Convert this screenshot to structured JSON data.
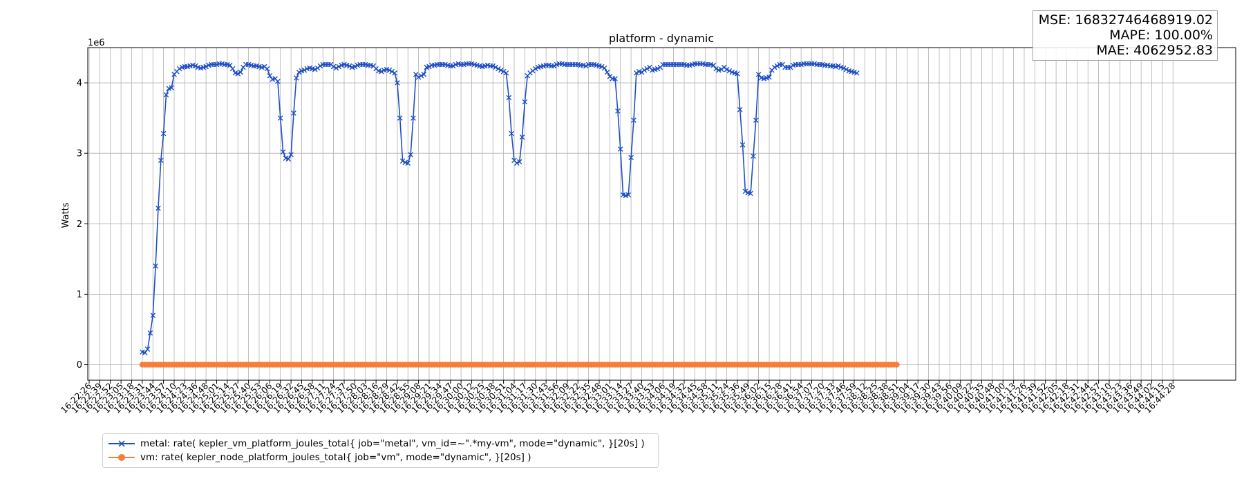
{
  "chart_data": {
    "type": "line",
    "title": "platform - dynamic",
    "xlabel": "",
    "ylabel": "Watts",
    "y_scale_label": "1e6",
    "y_multiplier": 1000000,
    "ylim": [
      -0.22,
      4.5
    ],
    "yticks": [
      0,
      1,
      2,
      3,
      4
    ],
    "grid": true,
    "legend_position": "bottom-left (below plot)",
    "x_tick_labels": [
      "16:22:26",
      "16:22:39",
      "16:22:52",
      "16:23:05",
      "16:23:18",
      "16:23:31",
      "16:23:44",
      "16:23:57",
      "16:24:10",
      "16:24:23",
      "16:24:36",
      "16:24:48",
      "16:25:01",
      "16:25:14",
      "16:25:27",
      "16:25:40",
      "16:25:53",
      "16:26:06",
      "16:26:19",
      "16:26:32",
      "16:26:45",
      "16:26:58",
      "16:27:11",
      "16:27:24",
      "16:27:37",
      "16:27:50",
      "16:28:03",
      "16:28:16",
      "16:28:29",
      "16:28:42",
      "16:28:55",
      "16:29:08",
      "16:29:21",
      "16:29:34",
      "16:29:47",
      "16:30:00",
      "16:30:12",
      "16:30:25",
      "16:30:38",
      "16:30:51",
      "16:31:04",
      "16:31:17",
      "16:31:30",
      "16:31:43",
      "16:31:56",
      "16:32:09",
      "16:32:22",
      "16:32:35",
      "16:32:48",
      "16:33:01",
      "16:33:14",
      "16:33:27",
      "16:33:40",
      "16:33:53",
      "16:34:06",
      "16:34:19",
      "16:34:32",
      "16:34:45",
      "16:34:58",
      "16:35:11",
      "16:35:24",
      "16:35:36",
      "16:35:49",
      "16:36:02",
      "16:36:15",
      "16:36:28",
      "16:36:41",
      "16:36:54",
      "16:37:07",
      "16:37:20",
      "16:37:33",
      "16:37:46",
      "16:37:59",
      "16:38:12",
      "16:38:25",
      "16:38:38",
      "16:38:51",
      "16:39:04",
      "16:39:17",
      "16:39:30",
      "16:39:43",
      "16:39:56",
      "16:40:09",
      "16:40:22",
      "16:40:35",
      "16:40:48",
      "16:41:00",
      "16:41:13",
      "16:41:26",
      "16:41:39",
      "16:41:52",
      "16:42:05",
      "16:42:18",
      "16:42:31",
      "16:42:44",
      "16:42:57",
      "16:43:10",
      "16:43:23",
      "16:43:36",
      "16:43:49",
      "16:44:02",
      "16:44:15",
      "16:44:28"
    ],
    "series": [
      {
        "name": "metal: rate( kepler_vm_platform_joules_total{ job=\"metal\", vm_id=~\".*my-vm\", mode=\"dynamic\", }[20s] )",
        "color": "#1f4fc4",
        "marker": "x",
        "start_tick": 5,
        "step": 0.25,
        "values": [
          0.18,
          0.17,
          0.22,
          0.45,
          0.7,
          1.4,
          2.22,
          2.9,
          3.28,
          3.83,
          3.92,
          3.93,
          4.12,
          4.16,
          4.2,
          4.22,
          4.23,
          4.23,
          4.24,
          4.25,
          4.24,
          4.22,
          4.21,
          4.22,
          4.23,
          4.25,
          4.26,
          4.26,
          4.26,
          4.27,
          4.27,
          4.26,
          4.26,
          4.25,
          4.2,
          4.14,
          4.13,
          4.15,
          4.22,
          4.26,
          4.26,
          4.25,
          4.24,
          4.24,
          4.23,
          4.22,
          4.23,
          4.2,
          4.1,
          4.05,
          4.06,
          4.02,
          3.5,
          3.02,
          2.93,
          2.92,
          2.98,
          3.57,
          4.07,
          4.15,
          4.17,
          4.18,
          4.2,
          4.21,
          4.2,
          4.19,
          4.21,
          4.24,
          4.26,
          4.26,
          4.26,
          4.26,
          4.23,
          4.21,
          4.23,
          4.25,
          4.26,
          4.25,
          4.24,
          4.22,
          4.23,
          4.25,
          4.26,
          4.26,
          4.26,
          4.25,
          4.25,
          4.24,
          4.2,
          4.17,
          4.16,
          4.18,
          4.19,
          4.18,
          4.16,
          4.14,
          4.0,
          3.5,
          2.89,
          2.87,
          2.86,
          2.98,
          3.5,
          4.12,
          4.08,
          4.1,
          4.12,
          4.22,
          4.23,
          4.25,
          4.25,
          4.26,
          4.26,
          4.26,
          4.26,
          4.25,
          4.24,
          4.24,
          4.26,
          4.27,
          4.26,
          4.26,
          4.27,
          4.27,
          4.27,
          4.26,
          4.25,
          4.24,
          4.23,
          4.24,
          4.25,
          4.24,
          4.24,
          4.22,
          4.2,
          4.18,
          4.16,
          4.14,
          3.79,
          3.28,
          2.9,
          2.86,
          2.88,
          3.23,
          3.73,
          4.1,
          4.14,
          4.17,
          4.2,
          4.22,
          4.23,
          4.24,
          4.25,
          4.25,
          4.24,
          4.24,
          4.26,
          4.27,
          4.27,
          4.26,
          4.26,
          4.26,
          4.26,
          4.26,
          4.26,
          4.25,
          4.25,
          4.24,
          4.26,
          4.26,
          4.26,
          4.25,
          4.24,
          4.23,
          4.21,
          4.15,
          4.09,
          4.06,
          4.06,
          3.6,
          3.06,
          2.41,
          2.4,
          2.41,
          2.94,
          3.47,
          4.14,
          4.16,
          4.15,
          4.18,
          4.2,
          4.22,
          4.18,
          4.19,
          4.2,
          4.22,
          4.26,
          4.26,
          4.26,
          4.26,
          4.26,
          4.26,
          4.26,
          4.26,
          4.26,
          4.25,
          4.25,
          4.26,
          4.27,
          4.27,
          4.27,
          4.27,
          4.26,
          4.26,
          4.26,
          4.25,
          4.2,
          4.18,
          4.19,
          4.22,
          4.19,
          4.17,
          4.15,
          4.14,
          4.13,
          3.62,
          3.12,
          2.46,
          2.44,
          2.43,
          2.96,
          3.47,
          4.12,
          4.07,
          4.06,
          4.07,
          4.08,
          4.18,
          4.22,
          4.24,
          4.26,
          4.26,
          4.22,
          4.22,
          4.22,
          4.25,
          4.26,
          4.26,
          4.26,
          4.27,
          4.27,
          4.27,
          4.27,
          4.27,
          4.26,
          4.26,
          4.26,
          4.25,
          4.25,
          4.24,
          4.24,
          4.23,
          4.24,
          4.22,
          4.21,
          4.19,
          4.17,
          4.16,
          4.15,
          4.14
        ]
      },
      {
        "name": "vm: rate( kepler_node_platform_joules_total{ job=\"vm\", mode=\"dynamic\", }[20s] )",
        "color": "#f47f3a",
        "marker": "o",
        "start_tick": 5,
        "step": 0.25,
        "constant_value": 0,
        "count": 285
      }
    ]
  },
  "stats": {
    "mse": "MSE: 16832746468919.02",
    "mape": "MAPE: 100.00%",
    "mae": "MAE: 4062952.83"
  }
}
